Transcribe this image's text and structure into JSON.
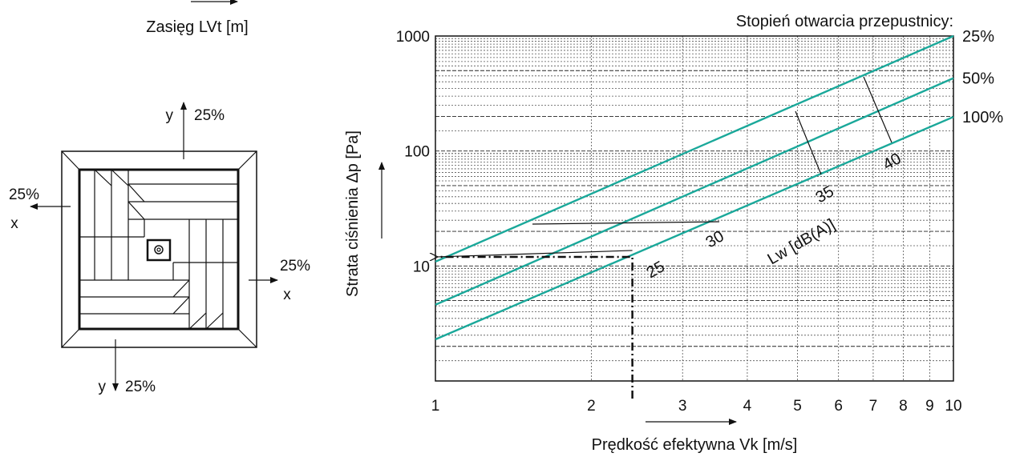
{
  "left_panel": {
    "range_label": "Zasięg LVt [m]",
    "top_pct": "25%",
    "top_axis": "y",
    "left_pct": "25%",
    "left_axis": "x",
    "right_pct": "25%",
    "right_axis": "x",
    "bottom_pct": "25%",
    "bottom_axis": "y"
  },
  "chart_data": {
    "type": "line",
    "title": "Stopień otwarcia przepustnicy:",
    "xlabel": "Prędkość efektywna Vk [m/s]",
    "ylabel": "Strata ciśnienia Δp [Pa]",
    "x_scale": "log",
    "y_scale": "log",
    "xlim": [
      1,
      10
    ],
    "ylim": [
      1,
      1000
    ],
    "x_ticks": [
      "1",
      "2",
      "3",
      "4",
      "5",
      "6",
      "7",
      "8",
      "9",
      "10"
    ],
    "y_ticks": [
      "10",
      "100",
      "1000"
    ],
    "grid": true,
    "series_color": "#1aa89a",
    "series": [
      {
        "name": "25%",
        "x": [
          1,
          10
        ],
        "y": [
          10.9,
          1000
        ]
      },
      {
        "name": "50%",
        "x": [
          1,
          10
        ],
        "y": [
          4.6,
          430
        ]
      },
      {
        "name": "100%",
        "x": [
          1,
          10
        ],
        "y": [
          2.3,
          198
        ]
      }
    ],
    "sound_label": "Lw [dB(A)]",
    "sound_levels": [
      "25",
      "30",
      "35",
      "40"
    ],
    "example": {
      "vk": 2.4,
      "dp": 12
    }
  }
}
